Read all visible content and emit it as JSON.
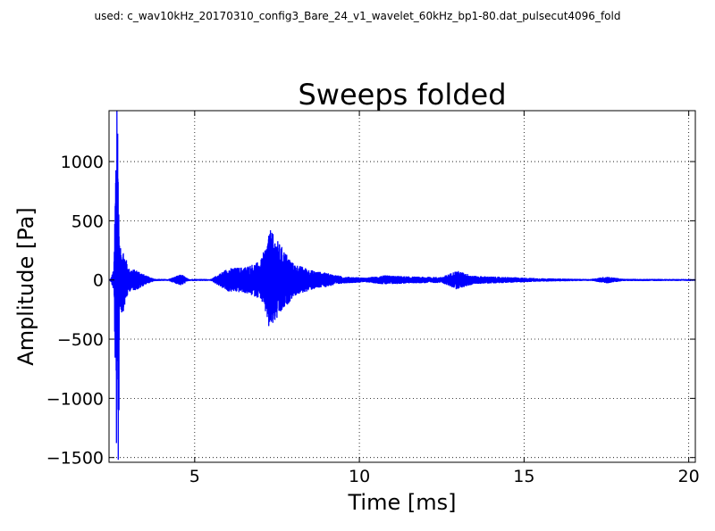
{
  "figure": {
    "suptitle": "used: c_wav10kHz_20170310_config3_Bare_24_v1_wavelet_60kHz_bp1-80.dat_pulsecut4096_fold"
  },
  "chart_data": {
    "type": "line",
    "title": "Sweeps folded",
    "xlabel": "Time [ms]",
    "ylabel": "Amplitude [Pa]",
    "xlim": [
      2.4,
      20.2
    ],
    "ylim": [
      -1540,
      1430
    ],
    "xticks": [
      5,
      10,
      15,
      20
    ],
    "xtick_labels": [
      "5",
      "10",
      "15",
      "20"
    ],
    "yticks": [
      1000,
      500,
      0,
      -500,
      -1000,
      -1500
    ],
    "ytick_labels": [
      "1000",
      "500",
      "0",
      "−500",
      "−1000",
      "−1500"
    ],
    "grid": true,
    "grid_style": "dotted",
    "line_color": "#0000ff",
    "series": [
      {
        "envelope_points": [
          {
            "x": 2.45,
            "amp": 10
          },
          {
            "x": 2.55,
            "amp": 100
          },
          {
            "x": 2.62,
            "amp": 1430
          },
          {
            "x": 2.66,
            "amp": 1500
          },
          {
            "x": 2.72,
            "amp": 250
          },
          {
            "x": 2.8,
            "amp": 300
          },
          {
            "x": 2.9,
            "amp": 200
          },
          {
            "x": 3.0,
            "amp": 100
          },
          {
            "x": 3.3,
            "amp": 80
          },
          {
            "x": 3.5,
            "amp": 40
          },
          {
            "x": 3.8,
            "amp": 10
          },
          {
            "x": 4.2,
            "amp": 8
          },
          {
            "x": 4.6,
            "amp": 50
          },
          {
            "x": 4.8,
            "amp": 10
          },
          {
            "x": 5.5,
            "amp": 8
          },
          {
            "x": 6.0,
            "amp": 100
          },
          {
            "x": 6.5,
            "amp": 110
          },
          {
            "x": 7.0,
            "amp": 160
          },
          {
            "x": 7.3,
            "amp": 420
          },
          {
            "x": 7.6,
            "amp": 300
          },
          {
            "x": 8.0,
            "amp": 140
          },
          {
            "x": 8.6,
            "amp": 80
          },
          {
            "x": 9.0,
            "amp": 60
          },
          {
            "x": 9.5,
            "amp": 30
          },
          {
            "x": 10.2,
            "amp": 20
          },
          {
            "x": 10.8,
            "amp": 40
          },
          {
            "x": 11.5,
            "amp": 30
          },
          {
            "x": 12.5,
            "amp": 25
          },
          {
            "x": 12.95,
            "amp": 80
          },
          {
            "x": 13.5,
            "amp": 35
          },
          {
            "x": 14.5,
            "amp": 25
          },
          {
            "x": 15.5,
            "amp": 15
          },
          {
            "x": 17.0,
            "amp": 8
          },
          {
            "x": 17.5,
            "amp": 30
          },
          {
            "x": 18.0,
            "amp": 10
          },
          {
            "x": 20.2,
            "amp": 8
          }
        ],
        "extrema": [
          {
            "x": 2.64,
            "y": 1430
          },
          {
            "x": 2.68,
            "y": -1520
          },
          {
            "x": 2.7,
            "y": -1100
          },
          {
            "x": 7.3,
            "y": 420
          },
          {
            "x": 7.25,
            "y": -390
          }
        ]
      }
    ]
  }
}
